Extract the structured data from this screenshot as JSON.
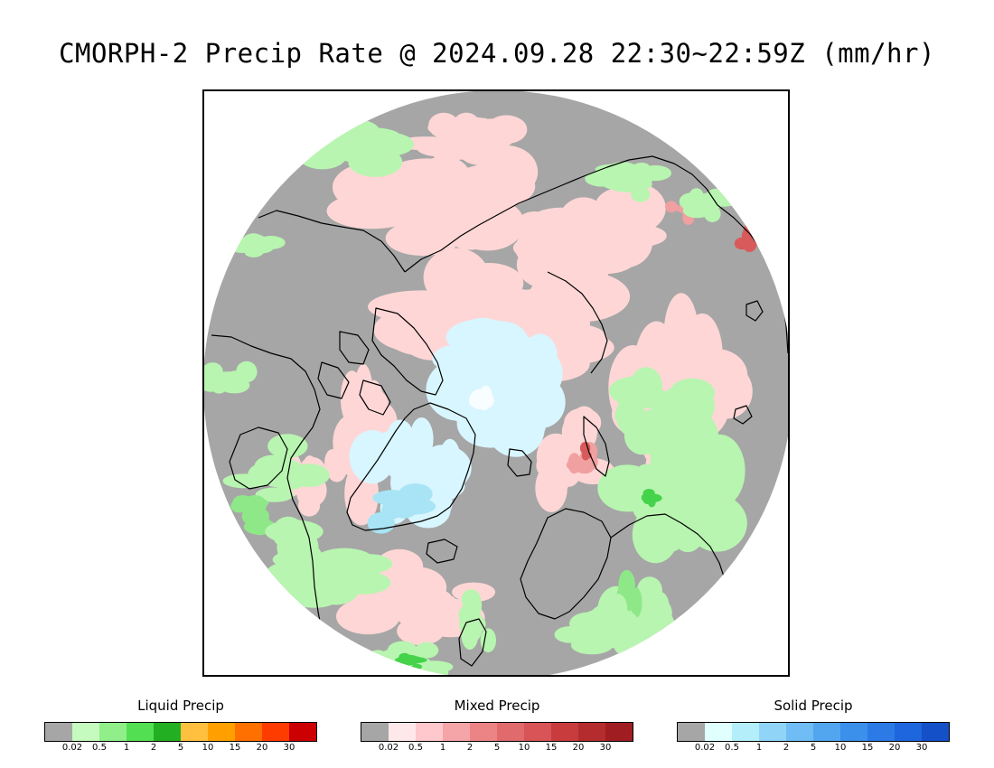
{
  "title": "CMORPH-2 Precip Rate @ 2024.09.28 22:30~22:59Z (mm/hr)",
  "map": {
    "projection": "north polar stereographic",
    "colors": {
      "background": "#a6a6a6",
      "liquid_light": "#b8f5b0",
      "liquid_mid": "#8ee888",
      "liquid_strong": "#44d34a",
      "mixed_light": "#ffd6d6",
      "mixed_mid": "#f0a0a0",
      "mixed_strong": "#d85a5a",
      "solid_light": "#d8f6ff",
      "solid_mid": "#a8e4f6",
      "solid_strong": "#f8fdff",
      "coastline": "#000000"
    }
  },
  "legends": [
    {
      "title": "Liquid Precip",
      "colors": [
        "#a6a6a6",
        "#c6fbc0",
        "#90ef88",
        "#52e052",
        "#22b022",
        "#ffc040",
        "#ffa000",
        "#ff7000",
        "#ff3c00",
        "#cc0000"
      ],
      "ticks": [
        "0.02",
        "0.5",
        "1",
        "2",
        "5",
        "10",
        "15",
        "20",
        "30"
      ]
    },
    {
      "title": "Mixed Precip",
      "colors": [
        "#a6a6a6",
        "#ffe8ea",
        "#ffc8cc",
        "#f5a5a8",
        "#ec8486",
        "#e06a6c",
        "#d85456",
        "#c83c3e",
        "#b42c2e",
        "#a01e22"
      ],
      "ticks": [
        "0.02",
        "0.5",
        "1",
        "2",
        "5",
        "10",
        "15",
        "20",
        "30"
      ]
    },
    {
      "title": "Solid Precip",
      "colors": [
        "#a6a6a6",
        "#e0ffff",
        "#b4eefa",
        "#90d4f8",
        "#70bcf4",
        "#52a6f0",
        "#3a90ea",
        "#2c7ae6",
        "#1e66de",
        "#1450c8"
      ],
      "ticks": [
        "0.02",
        "0.5",
        "1",
        "2",
        "5",
        "10",
        "15",
        "20",
        "30"
      ]
    }
  ]
}
